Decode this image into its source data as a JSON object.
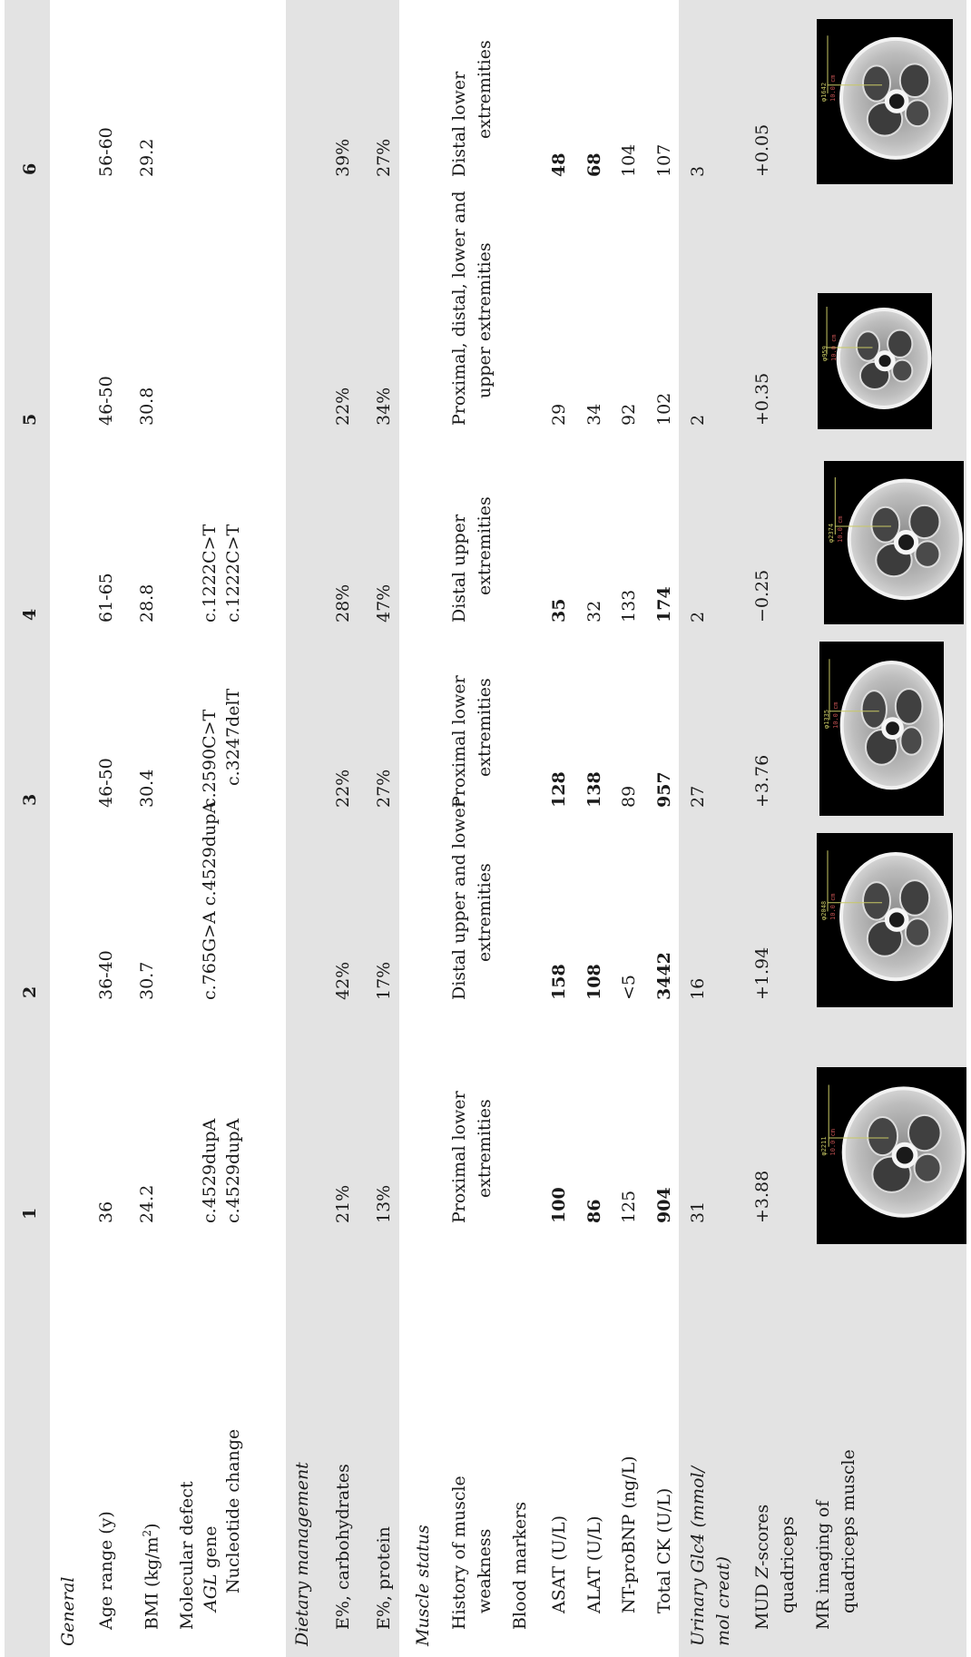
{
  "columns": [
    "1",
    "2",
    "3",
    "4",
    "5",
    "6"
  ],
  "sections": {
    "general": "General",
    "dietary": "Dietary management",
    "muscle": "Muscle status"
  },
  "row_labels": {
    "age": "Age range (y)",
    "bmi_main": "BMI (kg/m",
    "bmi_sup": "2",
    "bmi_close": ")",
    "molecular": "Molecular defect",
    "agl_gene": "AGL",
    "agl_gene_suffix": " gene",
    "nucleotide": "Nucleotide change",
    "carb": "E%, carbohydrates",
    "protein": "E%, protein",
    "history_1": "History of muscle",
    "history_2": "weakness",
    "blood": "Blood markers",
    "asat": "ASAT (U/L)",
    "alat": "ALAT (U/L)",
    "ntprobnp": "NT-proBNP (ng/L)",
    "ck": "Total CK (U/L)",
    "glc4_1": "Urinary Glc4 (mmol/",
    "glc4_2": "mol creat)",
    "mud_1": "MUD Z-scores",
    "mud_2": "quadriceps",
    "mr_1": "MR imaging of",
    "mr_2": "quadriceps muscle"
  },
  "values": {
    "age": [
      "36",
      "36-40",
      "46-50",
      "61-65",
      "46-50",
      "56-60"
    ],
    "bmi": [
      "24.2",
      "30.7",
      "30.4",
      "28.8",
      "30.8",
      "29.2"
    ],
    "nucleotide_1": [
      "c.4529dupA",
      "c.765G>A c.4529dupA",
      "c.2590C>T",
      "c.1222C>T",
      "",
      ""
    ],
    "nucleotide_2": [
      "c.4529dupA",
      "",
      "c.3247delT",
      "c.1222C>T",
      "",
      ""
    ],
    "carb": [
      "21%",
      "42%",
      "22%",
      "28%",
      "22%",
      "39%"
    ],
    "protein": [
      "13%",
      "17%",
      "27%",
      "47%",
      "34%",
      "27%"
    ],
    "history_1": [
      "Proximal lower",
      "Distal upper and lower",
      "Proximal lower",
      "Distal upper",
      "Proximal, distal, lower and",
      "Distal lower"
    ],
    "history_2": [
      "extremities",
      "extremities",
      "extremities",
      "extremities",
      "upper extremities",
      "extremities"
    ],
    "asat": [
      "100",
      "158",
      "128",
      "35",
      "29",
      "48"
    ],
    "alat": [
      "86",
      "108",
      "138",
      "32",
      "34",
      "68"
    ],
    "ntprobnp": [
      "125",
      "<5",
      "89",
      "133",
      "92",
      "104"
    ],
    "ck": [
      "904",
      "3442",
      "957",
      "174",
      "102",
      "107"
    ],
    "glc4": [
      "31",
      "16",
      "27",
      "2",
      "2",
      "3"
    ],
    "mud": [
      "+3.88",
      "+1.94",
      "+3.76",
      "−0.25",
      "+0.35",
      "+0.05"
    ]
  },
  "bold": {
    "asat": [
      true,
      true,
      true,
      true,
      false,
      true
    ],
    "alat": [
      true,
      true,
      true,
      false,
      false,
      true
    ],
    "ck": [
      true,
      true,
      true,
      true,
      false,
      false
    ]
  },
  "mri_labels": [
    "φ2211",
    "φ2048",
    "φ1335",
    "φ2374",
    "φ959",
    "φ1642"
  ],
  "mri_scale": "10.0 cm"
}
